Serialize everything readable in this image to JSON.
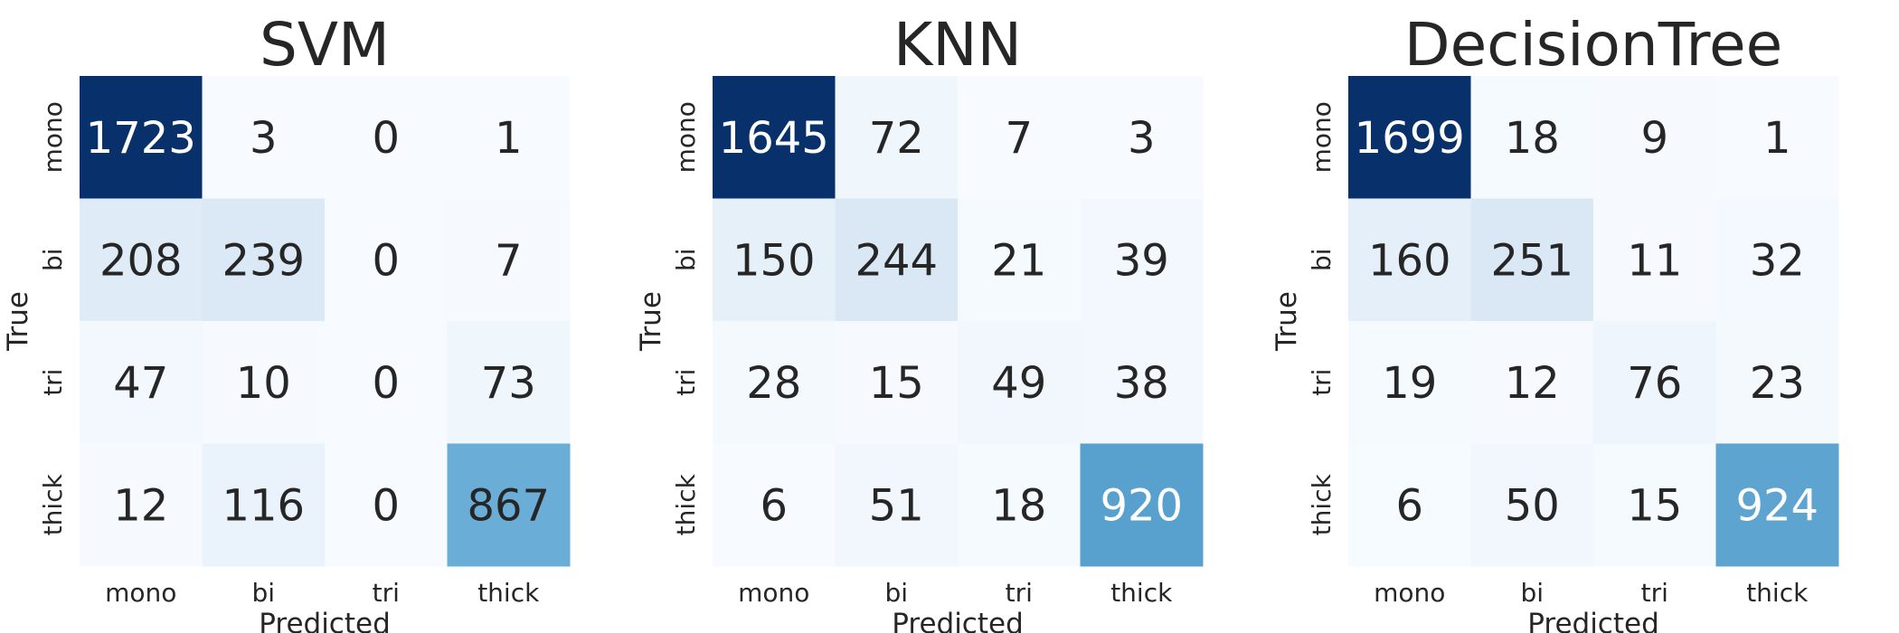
{
  "chart_data": [
    {
      "type": "heatmap",
      "title": "SVM",
      "xlabel": "Predicted",
      "ylabel": "True",
      "x_categories": [
        "mono",
        "bi",
        "tri",
        "thick"
      ],
      "y_categories": [
        "mono",
        "bi",
        "tri",
        "thick"
      ],
      "values": [
        [
          1723,
          3,
          0,
          1
        ],
        [
          208,
          239,
          0,
          7
        ],
        [
          47,
          10,
          0,
          73
        ],
        [
          12,
          116,
          0,
          867
        ]
      ],
      "colormap": "Blues",
      "color_range": [
        0,
        1723
      ],
      "colorbar": false
    },
    {
      "type": "heatmap",
      "title": "KNN",
      "xlabel": "Predicted",
      "ylabel": "True",
      "x_categories": [
        "mono",
        "bi",
        "tri",
        "thick"
      ],
      "y_categories": [
        "mono",
        "bi",
        "tri",
        "thick"
      ],
      "values": [
        [
          1645,
          72,
          7,
          3
        ],
        [
          150,
          244,
          21,
          39
        ],
        [
          28,
          15,
          49,
          38
        ],
        [
          6,
          51,
          18,
          920
        ]
      ],
      "colormap": "Blues",
      "color_range": [
        3,
        1645
      ],
      "colorbar": false
    },
    {
      "type": "heatmap",
      "title": "DecisionTree",
      "xlabel": "Predicted",
      "ylabel": "True",
      "x_categories": [
        "mono",
        "bi",
        "tri",
        "thick"
      ],
      "y_categories": [
        "mono",
        "bi",
        "tri",
        "thick"
      ],
      "values": [
        [
          1699,
          18,
          9,
          1
        ],
        [
          160,
          251,
          11,
          32
        ],
        [
          19,
          12,
          76,
          23
        ],
        [
          6,
          50,
          15,
          924
        ]
      ],
      "colormap": "Blues",
      "color_range": [
        1,
        1699
      ],
      "colorbar": false
    }
  ],
  "colors": {
    "text_dark": "#262626",
    "text_light": "#ffffff",
    "blues_scale": [
      "#f7fbff",
      "#deebf7",
      "#c6dbef",
      "#9ecae1",
      "#6baed6",
      "#4292c6",
      "#2171b5",
      "#08519c",
      "#08306b"
    ]
  }
}
